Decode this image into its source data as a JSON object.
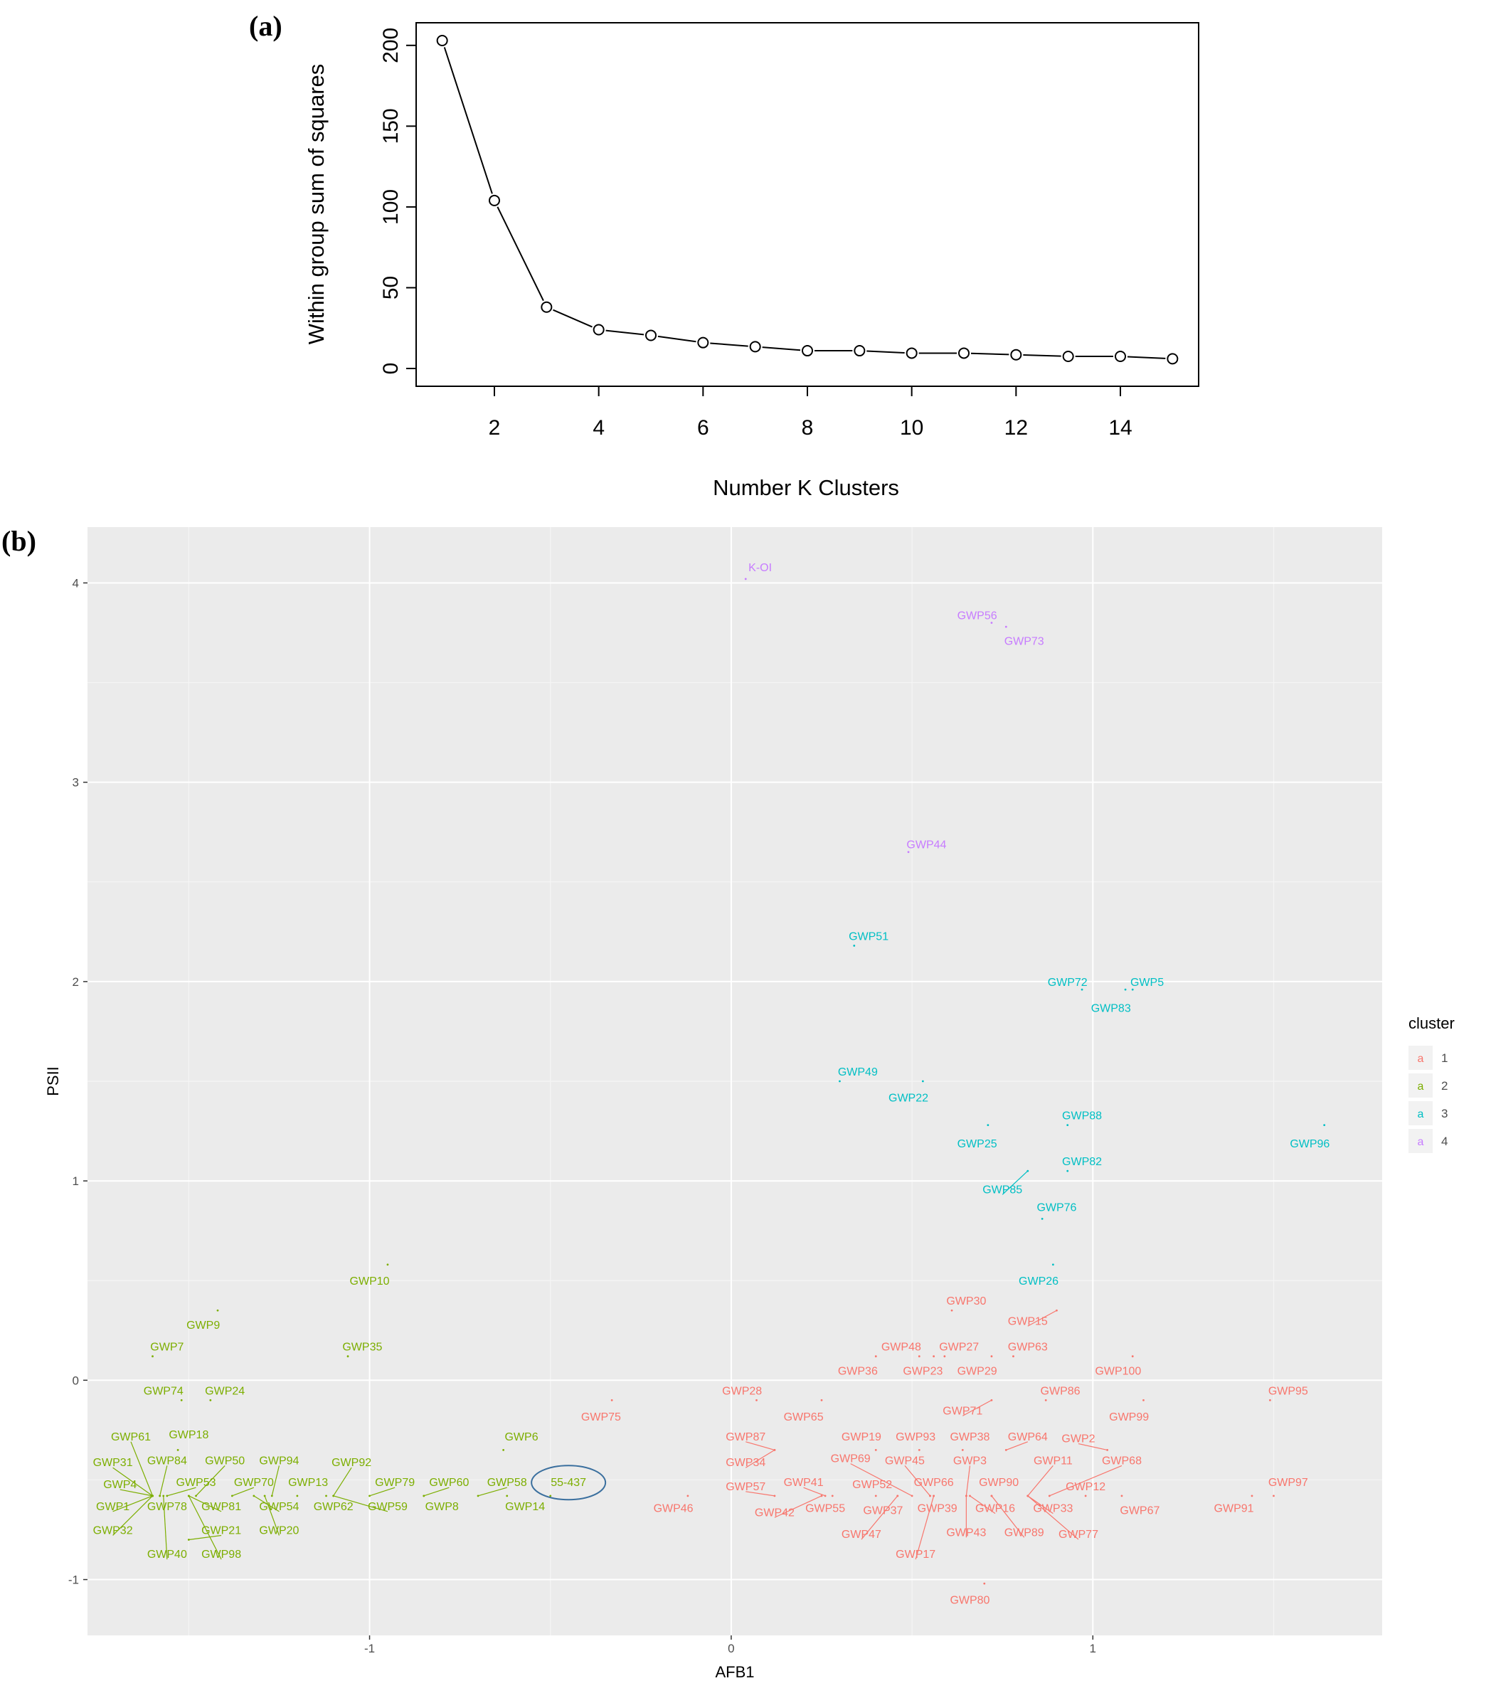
{
  "panels": {
    "a": "(a)",
    "b": "(b)"
  },
  "chart_data": [
    {
      "type": "line",
      "xlabel": "Number K Clusters",
      "ylabel": "Within group sum of squares",
      "x": [
        1,
        2,
        3,
        4,
        5,
        6,
        7,
        8,
        9,
        10,
        11,
        12,
        13,
        14,
        15
      ],
      "y": [
        203,
        104,
        38,
        24,
        20.5,
        16,
        13.5,
        11,
        11,
        9.5,
        9.5,
        8.5,
        7.5,
        7.5,
        6
      ],
      "xlim": [
        0.5,
        15.5
      ],
      "ylim": [
        -11,
        214
      ],
      "xticks": [
        2,
        4,
        6,
        8,
        10,
        12,
        14
      ],
      "yticks": [
        0,
        50,
        100,
        150,
        200
      ],
      "marker": "open-circle",
      "grid": false
    },
    {
      "type": "scatter",
      "xlabel": "AFB1",
      "ylabel": "PSII",
      "xlim": [
        -1.78,
        1.8
      ],
      "ylim": [
        -1.28,
        4.28
      ],
      "xticks": [
        -1,
        0,
        1
      ],
      "yticks": [
        -1,
        0,
        1,
        2,
        3,
        4
      ],
      "grid": true,
      "legend": {
        "title": "cluster",
        "position": "right",
        "glyph": "a",
        "entries": [
          {
            "label": "1",
            "color": "#F8766D"
          },
          {
            "label": "2",
            "color": "#7CAE00"
          },
          {
            "label": "3",
            "color": "#00BFC4"
          },
          {
            "label": "4",
            "color": "#C77CFF"
          }
        ]
      },
      "highlight": {
        "label": "55-437",
        "shape": "ellipse",
        "color": "#3a6f9e"
      },
      "points": [
        {
          "label": "K-OI",
          "cluster": 4,
          "x": 0.04,
          "y": 4.02,
          "lx": 0.08,
          "ly": 4.08
        },
        {
          "label": "GWP56",
          "cluster": 4,
          "x": 0.72,
          "y": 3.8,
          "lx": 0.68,
          "ly": 3.84
        },
        {
          "label": "GWP73",
          "cluster": 4,
          "x": 0.76,
          "y": 3.78,
          "lx": 0.81,
          "ly": 3.71
        },
        {
          "label": "GWP44",
          "cluster": 4,
          "x": 0.49,
          "y": 2.65,
          "lx": 0.54,
          "ly": 2.69
        },
        {
          "label": "GWP51",
          "cluster": 3,
          "x": 0.34,
          "y": 2.18,
          "lx": 0.38,
          "ly": 2.23
        },
        {
          "label": "GWP72",
          "cluster": 3,
          "x": 0.97,
          "y": 1.96,
          "lx": 0.93,
          "ly": 2.0
        },
        {
          "label": "GWP5",
          "cluster": 3,
          "x": 1.11,
          "y": 1.96,
          "lx": 1.15,
          "ly": 2.0
        },
        {
          "label": "GWP83",
          "cluster": 3,
          "x": 1.09,
          "y": 1.96,
          "lx": 1.05,
          "ly": 1.87
        },
        {
          "label": "GWP49",
          "cluster": 3,
          "x": 0.3,
          "y": 1.5,
          "lx": 0.35,
          "ly": 1.55
        },
        {
          "label": "GWP22",
          "cluster": 3,
          "x": 0.53,
          "y": 1.5,
          "lx": 0.49,
          "ly": 1.42
        },
        {
          "label": "GWP88",
          "cluster": 3,
          "x": 0.93,
          "y": 1.28,
          "lx": 0.97,
          "ly": 1.33
        },
        {
          "label": "GWP25",
          "cluster": 3,
          "x": 0.71,
          "y": 1.28,
          "lx": 0.68,
          "ly": 1.19
        },
        {
          "label": "GWP96",
          "cluster": 3,
          "x": 1.64,
          "y": 1.28,
          "lx": 1.6,
          "ly": 1.19
        },
        {
          "label": "GWP82",
          "cluster": 3,
          "x": 0.93,
          "y": 1.05,
          "lx": 0.97,
          "ly": 1.1
        },
        {
          "label": "GWP85",
          "cluster": 3,
          "x": 0.82,
          "y": 1.05,
          "lx": 0.75,
          "ly": 0.96
        },
        {
          "label": "GWP76",
          "cluster": 3,
          "x": 0.86,
          "y": 0.81,
          "lx": 0.9,
          "ly": 0.87
        },
        {
          "label": "GWP26",
          "cluster": 3,
          "x": 0.89,
          "y": 0.58,
          "lx": 0.85,
          "ly": 0.5
        },
        {
          "label": "GWP10",
          "cluster": 2,
          "x": -0.95,
          "y": 0.58,
          "lx": -1.0,
          "ly": 0.5
        },
        {
          "label": "GWP9",
          "cluster": 2,
          "x": -1.42,
          "y": 0.35,
          "lx": -1.46,
          "ly": 0.28
        },
        {
          "label": "GWP7",
          "cluster": 2,
          "x": -1.6,
          "y": 0.12,
          "lx": -1.56,
          "ly": 0.17
        },
        {
          "label": "GWP35",
          "cluster": 2,
          "x": -1.06,
          "y": 0.12,
          "lx": -1.02,
          "ly": 0.17
        },
        {
          "label": "GWP74",
          "cluster": 2,
          "x": -1.52,
          "y": -0.1,
          "lx": -1.57,
          "ly": -0.05
        },
        {
          "label": "GWP24",
          "cluster": 2,
          "x": -1.44,
          "y": -0.1,
          "lx": -1.4,
          "ly": -0.05
        },
        {
          "label": "GWP6",
          "cluster": 2,
          "x": -0.63,
          "y": -0.35,
          "lx": -0.58,
          "ly": -0.28
        },
        {
          "label": "GWP61",
          "cluster": 2,
          "x": -1.6,
          "y": -0.58,
          "lx": -1.66,
          "ly": -0.28
        },
        {
          "label": "GWP18",
          "cluster": 2,
          "x": -1.53,
          "y": -0.35,
          "lx": -1.5,
          "ly": -0.27
        },
        {
          "label": "GWP31",
          "cluster": 2,
          "x": -1.6,
          "y": -0.58,
          "lx": -1.71,
          "ly": -0.41
        },
        {
          "label": "GWP84",
          "cluster": 2,
          "x": -1.58,
          "y": -0.58,
          "lx": -1.56,
          "ly": -0.4
        },
        {
          "label": "GWP50",
          "cluster": 2,
          "x": -1.48,
          "y": -0.58,
          "lx": -1.4,
          "ly": -0.4
        },
        {
          "label": "GWP94",
          "cluster": 2,
          "x": -1.27,
          "y": -0.58,
          "lx": -1.25,
          "ly": -0.4
        },
        {
          "label": "GWP92",
          "cluster": 2,
          "x": -1.1,
          "y": -0.58,
          "lx": -1.05,
          "ly": -0.41
        },
        {
          "label": "GWP4",
          "cluster": 2,
          "x": -1.6,
          "y": -0.58,
          "lx": -1.69,
          "ly": -0.52
        },
        {
          "label": "GWP53",
          "cluster": 2,
          "x": -1.56,
          "y": -0.58,
          "lx": -1.48,
          "ly": -0.51
        },
        {
          "label": "GWP70",
          "cluster": 2,
          "x": -1.38,
          "y": -0.58,
          "lx": -1.32,
          "ly": -0.51
        },
        {
          "label": "GWP13",
          "cluster": 2,
          "x": -1.2,
          "y": -0.58,
          "lx": -1.17,
          "ly": -0.51
        },
        {
          "label": "GWP79",
          "cluster": 2,
          "x": -1.0,
          "y": -0.58,
          "lx": -0.93,
          "ly": -0.51
        },
        {
          "label": "GWP60",
          "cluster": 2,
          "x": -0.85,
          "y": -0.58,
          "lx": -0.78,
          "ly": -0.51
        },
        {
          "label": "GWP58",
          "cluster": 2,
          "x": -0.7,
          "y": -0.58,
          "lx": -0.62,
          "ly": -0.51
        },
        {
          "label": "55-437",
          "cluster": 2,
          "x": -0.5,
          "y": -0.58,
          "lx": -0.45,
          "ly": -0.51
        },
        {
          "label": "GWP1",
          "cluster": 2,
          "x": -1.6,
          "y": -0.58,
          "lx": -1.71,
          "ly": -0.63
        },
        {
          "label": "GWP78",
          "cluster": 2,
          "x": -1.58,
          "y": -0.58,
          "lx": -1.56,
          "ly": -0.63
        },
        {
          "label": "GWP81",
          "cluster": 2,
          "x": -1.5,
          "y": -0.58,
          "lx": -1.41,
          "ly": -0.63
        },
        {
          "label": "GWP54",
          "cluster": 2,
          "x": -1.32,
          "y": -0.58,
          "lx": -1.25,
          "ly": -0.63
        },
        {
          "label": "GWP62",
          "cluster": 2,
          "x": -1.12,
          "y": -0.58,
          "lx": -1.1,
          "ly": -0.63
        },
        {
          "label": "GWP59",
          "cluster": 2,
          "x": -1.1,
          "y": -0.58,
          "lx": -0.95,
          "ly": -0.63
        },
        {
          "label": "GWP8",
          "cluster": 2,
          "x": -0.85,
          "y": -0.58,
          "lx": -0.8,
          "ly": -0.63
        },
        {
          "label": "GWP14",
          "cluster": 2,
          "x": -0.62,
          "y": -0.58,
          "lx": -0.57,
          "ly": -0.63
        },
        {
          "label": "GWP32",
          "cluster": 2,
          "x": -1.6,
          "y": -0.58,
          "lx": -1.71,
          "ly": -0.75
        },
        {
          "label": "GWP21",
          "cluster": 2,
          "x": -1.5,
          "y": -0.8,
          "lx": -1.41,
          "ly": -0.75
        },
        {
          "label": "GWP20",
          "cluster": 2,
          "x": -1.29,
          "y": -0.58,
          "lx": -1.25,
          "ly": -0.75
        },
        {
          "label": "GWP40",
          "cluster": 2,
          "x": -1.57,
          "y": -0.58,
          "lx": -1.56,
          "ly": -0.87
        },
        {
          "label": "GWP98",
          "cluster": 2,
          "x": -1.5,
          "y": -0.58,
          "lx": -1.41,
          "ly": -0.87
        },
        {
          "label": "GWP30",
          "cluster": 1,
          "x": 0.61,
          "y": 0.35,
          "lx": 0.65,
          "ly": 0.4
        },
        {
          "label": "GWP15",
          "cluster": 1,
          "x": 0.9,
          "y": 0.35,
          "lx": 0.82,
          "ly": 0.3
        },
        {
          "label": "GWP48",
          "cluster": 1,
          "x": 0.52,
          "y": 0.12,
          "lx": 0.47,
          "ly": 0.17
        },
        {
          "label": "GWP27",
          "cluster": 1,
          "x": 0.59,
          "y": 0.12,
          "lx": 0.63,
          "ly": 0.17
        },
        {
          "label": "GWP63",
          "cluster": 1,
          "x": 0.78,
          "y": 0.12,
          "lx": 0.82,
          "ly": 0.17
        },
        {
          "label": "GWP100",
          "cluster": 1,
          "x": 1.11,
          "y": 0.12,
          "lx": 1.07,
          "ly": 0.05
        },
        {
          "label": "GWP36",
          "cluster": 1,
          "x": 0.4,
          "y": 0.12,
          "lx": 0.35,
          "ly": 0.05
        },
        {
          "label": "GWP23",
          "cluster": 1,
          "x": 0.56,
          "y": 0.12,
          "lx": 0.53,
          "ly": 0.05
        },
        {
          "label": "GWP29",
          "cluster": 1,
          "x": 0.72,
          "y": 0.12,
          "lx": 0.68,
          "ly": 0.05
        },
        {
          "label": "GWP28",
          "cluster": 1,
          "x": 0.07,
          "y": -0.1,
          "lx": 0.03,
          "ly": -0.05
        },
        {
          "label": "GWP86",
          "cluster": 1,
          "x": 0.87,
          "y": -0.1,
          "lx": 0.91,
          "ly": -0.05
        },
        {
          "label": "GWP95",
          "cluster": 1,
          "x": 1.49,
          "y": -0.1,
          "lx": 1.54,
          "ly": -0.05
        },
        {
          "label": "GWP71",
          "cluster": 1,
          "x": 0.72,
          "y": -0.1,
          "lx": 0.64,
          "ly": -0.15
        },
        {
          "label": "GWP75",
          "cluster": 1,
          "x": -0.33,
          "y": -0.1,
          "lx": -0.36,
          "ly": -0.18
        },
        {
          "label": "GWP65",
          "cluster": 1,
          "x": 0.25,
          "y": -0.1,
          "lx": 0.2,
          "ly": -0.18
        },
        {
          "label": "GWP99",
          "cluster": 1,
          "x": 1.14,
          "y": -0.1,
          "lx": 1.1,
          "ly": -0.18
        },
        {
          "label": "GWP19",
          "cluster": 1,
          "x": 0.4,
          "y": -0.35,
          "lx": 0.36,
          "ly": -0.28
        },
        {
          "label": "GWP93",
          "cluster": 1,
          "x": 0.52,
          "y": -0.35,
          "lx": 0.51,
          "ly": -0.28
        },
        {
          "label": "GWP38",
          "cluster": 1,
          "x": 0.64,
          "y": -0.35,
          "lx": 0.66,
          "ly": -0.28
        },
        {
          "label": "GWP64",
          "cluster": 1,
          "x": 0.76,
          "y": -0.35,
          "lx": 0.82,
          "ly": -0.28
        },
        {
          "label": "GWP87",
          "cluster": 1,
          "x": 0.12,
          "y": -0.35,
          "lx": 0.04,
          "ly": -0.28
        },
        {
          "label": "GWP2",
          "cluster": 1,
          "x": 1.04,
          "y": -0.35,
          "lx": 0.96,
          "ly": -0.29
        },
        {
          "label": "GWP34",
          "cluster": 1,
          "x": 0.12,
          "y": -0.35,
          "lx": 0.04,
          "ly": -0.41
        },
        {
          "label": "GWP69",
          "cluster": 1,
          "x": 0.5,
          "y": -0.58,
          "lx": 0.33,
          "ly": -0.39
        },
        {
          "label": "GWP45",
          "cluster": 1,
          "x": 0.55,
          "y": -0.58,
          "lx": 0.48,
          "ly": -0.4
        },
        {
          "label": "GWP3",
          "cluster": 1,
          "x": 0.65,
          "y": -0.58,
          "lx": 0.66,
          "ly": -0.4
        },
        {
          "label": "GWP11",
          "cluster": 1,
          "x": 0.82,
          "y": -0.58,
          "lx": 0.89,
          "ly": -0.4
        },
        {
          "label": "GWP68",
          "cluster": 1,
          "x": 0.88,
          "y": -0.58,
          "lx": 1.08,
          "ly": -0.4
        },
        {
          "label": "GWP57",
          "cluster": 1,
          "x": 0.12,
          "y": -0.58,
          "lx": 0.04,
          "ly": -0.53
        },
        {
          "label": "GWP41",
          "cluster": 1,
          "x": 0.26,
          "y": -0.58,
          "lx": 0.2,
          "ly": -0.51
        },
        {
          "label": "GWP52",
          "cluster": 1,
          "x": 0.4,
          "y": -0.58,
          "lx": 0.39,
          "ly": -0.52
        },
        {
          "label": "GWP66",
          "cluster": 1,
          "x": 0.55,
          "y": -0.58,
          "lx": 0.56,
          "ly": -0.51
        },
        {
          "label": "GWP90",
          "cluster": 1,
          "x": 0.72,
          "y": -0.58,
          "lx": 0.74,
          "ly": -0.51
        },
        {
          "label": "GWP12",
          "cluster": 1,
          "x": 0.98,
          "y": -0.58,
          "lx": 0.98,
          "ly": -0.53
        },
        {
          "label": "GWP97",
          "cluster": 1,
          "x": 1.5,
          "y": -0.58,
          "lx": 1.54,
          "ly": -0.51
        },
        {
          "label": "GWP46",
          "cluster": 1,
          "x": -0.12,
          "y": -0.58,
          "lx": -0.16,
          "ly": -0.64
        },
        {
          "label": "GWP42",
          "cluster": 1,
          "x": 0.25,
          "y": -0.58,
          "lx": 0.12,
          "ly": -0.66
        },
        {
          "label": "GWP55",
          "cluster": 1,
          "x": 0.28,
          "y": -0.58,
          "lx": 0.26,
          "ly": -0.64
        },
        {
          "label": "GWP37",
          "cluster": 1,
          "x": 0.46,
          "y": -0.58,
          "lx": 0.42,
          "ly": -0.65
        },
        {
          "label": "GWP39",
          "cluster": 1,
          "x": 0.56,
          "y": -0.58,
          "lx": 0.57,
          "ly": -0.64
        },
        {
          "label": "GWP16",
          "cluster": 1,
          "x": 0.66,
          "y": -0.58,
          "lx": 0.73,
          "ly": -0.64
        },
        {
          "label": "GWP33",
          "cluster": 1,
          "x": 0.82,
          "y": -0.58,
          "lx": 0.89,
          "ly": -0.64
        },
        {
          "label": "GWP67",
          "cluster": 1,
          "x": 1.08,
          "y": -0.58,
          "lx": 1.13,
          "ly": -0.65
        },
        {
          "label": "GWP91",
          "cluster": 1,
          "x": 1.44,
          "y": -0.58,
          "lx": 1.39,
          "ly": -0.64
        },
        {
          "label": "GWP47",
          "cluster": 1,
          "x": 0.46,
          "y": -0.58,
          "lx": 0.36,
          "ly": -0.77
        },
        {
          "label": "GWP43",
          "cluster": 1,
          "x": 0.65,
          "y": -0.58,
          "lx": 0.65,
          "ly": -0.76
        },
        {
          "label": "GWP89",
          "cluster": 1,
          "x": 0.72,
          "y": -0.58,
          "lx": 0.81,
          "ly": -0.76
        },
        {
          "label": "GWP77",
          "cluster": 1,
          "x": 0.82,
          "y": -0.58,
          "lx": 0.96,
          "ly": -0.77
        },
        {
          "label": "GWP17",
          "cluster": 1,
          "x": 0.56,
          "y": -0.58,
          "lx": 0.51,
          "ly": -0.87
        },
        {
          "label": "GWP80",
          "cluster": 1,
          "x": 0.7,
          "y": -1.02,
          "lx": 0.66,
          "ly": -1.1
        }
      ]
    }
  ]
}
